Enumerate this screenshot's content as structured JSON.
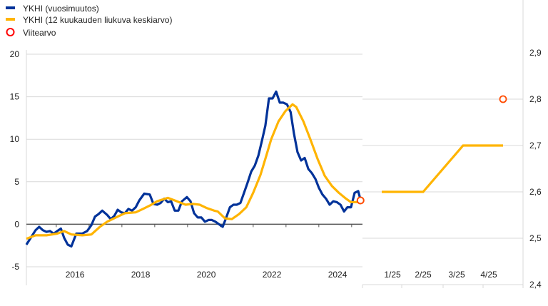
{
  "legend": [
    {
      "label": "YKHI (vuosimuutos)",
      "color": "#003299",
      "type": "line"
    },
    {
      "label": "YKHI (12 kuukauden liukuva keskiarvo)",
      "color": "#FFB400",
      "type": "line"
    },
    {
      "label": "Viitearvo",
      "color": "#FF4B00",
      "type": "circle"
    }
  ],
  "chart_data": [
    {
      "type": "line",
      "title": "",
      "xlabel": "",
      "ylabel": "",
      "xlim": [
        2014.52,
        2024.76
      ],
      "ylim": [
        -5,
        20
      ],
      "yticks": [
        -5,
        0,
        5,
        10,
        15,
        20
      ],
      "xtick_labels": [
        "2016",
        "2018",
        "2020",
        "2022",
        "2024"
      ],
      "xtick_positions": [
        2016,
        2018,
        2020,
        2022,
        2024
      ],
      "grid": true,
      "series": [
        {
          "name": "YKHI (vuosimuutos)",
          "color": "#003299",
          "points": [
            [
              2014.52,
              -2.4
            ],
            [
              2014.7,
              -1.3
            ],
            [
              2014.8,
              -0.7
            ],
            [
              2014.91,
              -0.3
            ],
            [
              2015.02,
              -0.7
            ],
            [
              2015.13,
              -0.9
            ],
            [
              2015.24,
              -0.8
            ],
            [
              2015.35,
              -1.1
            ],
            [
              2015.46,
              -0.8
            ],
            [
              2015.57,
              -0.5
            ],
            [
              2015.67,
              -1.6
            ],
            [
              2015.78,
              -2.4
            ],
            [
              2015.89,
              -2.6
            ],
            [
              2016.04,
              -1.1
            ],
            [
              2016.22,
              -1.1
            ],
            [
              2016.37,
              -0.8
            ],
            [
              2016.5,
              -0.1
            ],
            [
              2016.61,
              0.9
            ],
            [
              2016.72,
              1.2
            ],
            [
              2016.83,
              1.6
            ],
            [
              2016.98,
              1.1
            ],
            [
              2017.09,
              0.6
            ],
            [
              2017.2,
              1.0
            ],
            [
              2017.3,
              1.7
            ],
            [
              2017.41,
              1.4
            ],
            [
              2017.52,
              1.3
            ],
            [
              2017.63,
              1.8
            ],
            [
              2017.74,
              1.6
            ],
            [
              2017.85,
              2.0
            ],
            [
              2017.96,
              2.8
            ],
            [
              2018.11,
              3.6
            ],
            [
              2018.28,
              3.5
            ],
            [
              2018.39,
              2.4
            ],
            [
              2018.5,
              2.3
            ],
            [
              2018.61,
              2.5
            ],
            [
              2018.72,
              3.0
            ],
            [
              2018.83,
              2.6
            ],
            [
              2018.93,
              2.7
            ],
            [
              2019.04,
              1.6
            ],
            [
              2019.15,
              1.6
            ],
            [
              2019.26,
              2.7
            ],
            [
              2019.41,
              3.2
            ],
            [
              2019.52,
              2.7
            ],
            [
              2019.63,
              1.3
            ],
            [
              2019.74,
              0.8
            ],
            [
              2019.85,
              0.8
            ],
            [
              2019.96,
              0.3
            ],
            [
              2020.07,
              0.5
            ],
            [
              2020.17,
              0.5
            ],
            [
              2020.28,
              0.3
            ],
            [
              2020.39,
              0.0
            ],
            [
              2020.5,
              -0.3
            ],
            [
              2020.61,
              0.8
            ],
            [
              2020.72,
              2.0
            ],
            [
              2020.83,
              2.3
            ],
            [
              2020.93,
              2.3
            ],
            [
              2021.04,
              2.5
            ],
            [
              2021.15,
              3.7
            ],
            [
              2021.26,
              4.9
            ],
            [
              2021.37,
              6.2
            ],
            [
              2021.48,
              6.9
            ],
            [
              2021.59,
              8.1
            ],
            [
              2021.7,
              9.9
            ],
            [
              2021.8,
              11.6
            ],
            [
              2021.91,
              14.8
            ],
            [
              2022.02,
              14.8
            ],
            [
              2022.13,
              15.6
            ],
            [
              2022.24,
              14.3
            ],
            [
              2022.35,
              14.3
            ],
            [
              2022.46,
              14.1
            ],
            [
              2022.57,
              13.2
            ],
            [
              2022.67,
              10.7
            ],
            [
              2022.78,
              8.5
            ],
            [
              2022.89,
              7.5
            ],
            [
              2023.0,
              7.8
            ],
            [
              2023.11,
              6.5
            ],
            [
              2023.22,
              6.0
            ],
            [
              2023.33,
              5.3
            ],
            [
              2023.43,
              4.3
            ],
            [
              2023.54,
              3.5
            ],
            [
              2023.65,
              3.0
            ],
            [
              2023.76,
              2.3
            ],
            [
              2023.87,
              2.7
            ],
            [
              2023.98,
              2.6
            ],
            [
              2024.09,
              2.3
            ],
            [
              2024.2,
              1.5
            ],
            [
              2024.3,
              2.0
            ],
            [
              2024.41,
              2.0
            ],
            [
              2024.52,
              3.7
            ],
            [
              2024.63,
              3.9
            ],
            [
              2024.7,
              2.9
            ]
          ]
        },
        {
          "name": "YKHI (12 kuukauden liukuva keskiarvo)",
          "color": "#FFB400",
          "points": [
            [
              2014.52,
              -1.7
            ],
            [
              2014.8,
              -1.3
            ],
            [
              2015.13,
              -1.3
            ],
            [
              2015.46,
              -1.1
            ],
            [
              2015.67,
              -0.8
            ],
            [
              2015.89,
              -1.2
            ],
            [
              2016.22,
              -1.3
            ],
            [
              2016.5,
              -1.2
            ],
            [
              2016.76,
              -0.3
            ],
            [
              2016.98,
              0.3
            ],
            [
              2017.3,
              0.9
            ],
            [
              2017.52,
              1.3
            ],
            [
              2017.85,
              1.4
            ],
            [
              2018.07,
              1.8
            ],
            [
              2018.28,
              2.2
            ],
            [
              2018.5,
              2.7
            ],
            [
              2018.83,
              3.1
            ],
            [
              2019.04,
              2.8
            ],
            [
              2019.37,
              2.3
            ],
            [
              2019.59,
              2.4
            ],
            [
              2019.8,
              2.3
            ],
            [
              2020.02,
              1.9
            ],
            [
              2020.24,
              1.6
            ],
            [
              2020.35,
              1.5
            ],
            [
              2020.57,
              0.7
            ],
            [
              2020.78,
              0.6
            ],
            [
              2021.0,
              1.2
            ],
            [
              2021.22,
              2.0
            ],
            [
              2021.43,
              3.7
            ],
            [
              2021.65,
              5.8
            ],
            [
              2021.8,
              7.7
            ],
            [
              2021.98,
              10.0
            ],
            [
              2022.2,
              12.1
            ],
            [
              2022.41,
              13.3
            ],
            [
              2022.63,
              14.1
            ],
            [
              2022.74,
              13.8
            ],
            [
              2022.96,
              12.1
            ],
            [
              2023.17,
              10.0
            ],
            [
              2023.39,
              7.7
            ],
            [
              2023.61,
              5.7
            ],
            [
              2023.83,
              4.5
            ],
            [
              2024.04,
              3.7
            ],
            [
              2024.26,
              3.0
            ],
            [
              2024.41,
              2.6
            ],
            [
              2024.7,
              2.6
            ]
          ]
        },
        {
          "name": "Viitearvo",
          "color": "#FF4B00",
          "type": "scatter",
          "points": [
            [
              2024.7,
              2.8
            ]
          ]
        }
      ]
    },
    {
      "type": "line",
      "categories": [
        "1/25",
        "2/25",
        "3/25",
        "4/25"
      ],
      "ylim": [
        2.4,
        2.9
      ],
      "yticks": [
        "2,4",
        "2,5",
        "2,6",
        "2,7",
        "2,8",
        "2,9"
      ],
      "ytick_values": [
        2.4,
        2.5,
        2.6,
        2.7,
        2.8,
        2.9
      ],
      "grid": true,
      "series": [
        {
          "name": "YKHI (12 kuukauden liukuva keskiarvo)",
          "color": "#FFB400",
          "values": [
            2.6,
            2.6,
            2.7,
            2.7
          ]
        },
        {
          "name": "Viitearvo",
          "color": "#FF4B00",
          "type": "scatter",
          "values": [
            2.8
          ]
        }
      ]
    }
  ]
}
